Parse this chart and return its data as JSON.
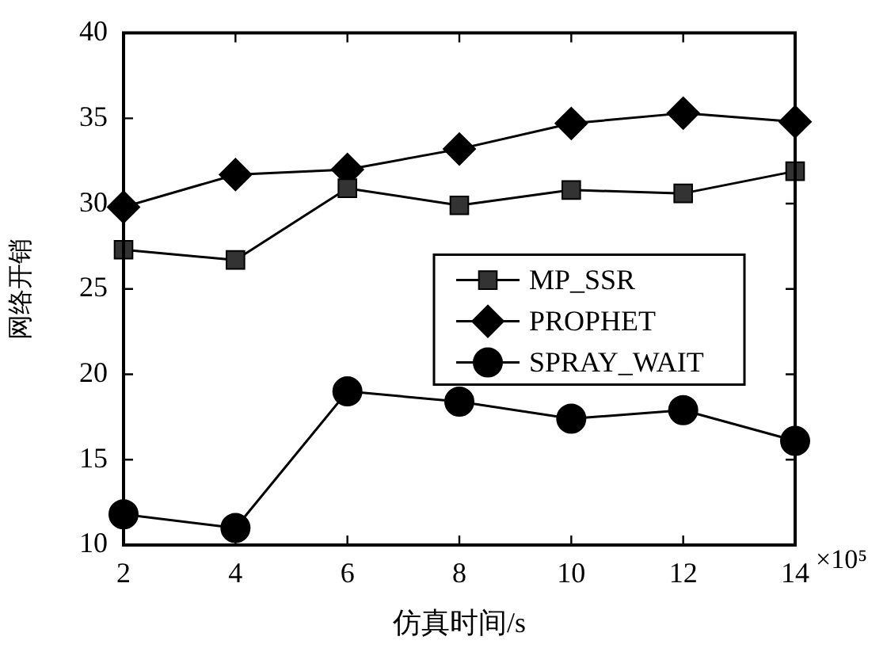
{
  "chart_data": {
    "type": "line",
    "xlabel": "仿真时间/s",
    "ylabel": "网络开销",
    "annotations": [
      "×10⁵"
    ],
    "x": [
      2,
      4,
      6,
      8,
      10,
      12,
      14
    ],
    "series": [
      {
        "name": "MP_SSR",
        "color": "#333333",
        "marker": "square",
        "values": [
          27.3,
          26.7,
          30.9,
          29.9,
          30.8,
          30.6,
          31.9
        ]
      },
      {
        "name": "PROPHET",
        "color": "#000000",
        "marker": "diamond",
        "values": [
          29.8,
          31.7,
          32.0,
          33.2,
          34.7,
          35.3,
          34.8
        ]
      },
      {
        "name": "SPRAY_WAIT",
        "color": "#000000",
        "marker": "circle",
        "values": [
          11.8,
          11.0,
          19.0,
          18.4,
          17.4,
          17.9,
          16.1
        ]
      }
    ],
    "xlim": [
      2,
      14
    ],
    "xticks": [
      2,
      4,
      6,
      8,
      10,
      12,
      14
    ],
    "ylim": [
      10,
      40
    ],
    "yticks": [
      10,
      15,
      20,
      25,
      30,
      35,
      40
    ],
    "grid": false,
    "legend": "right",
    "line_style": "solid"
  }
}
